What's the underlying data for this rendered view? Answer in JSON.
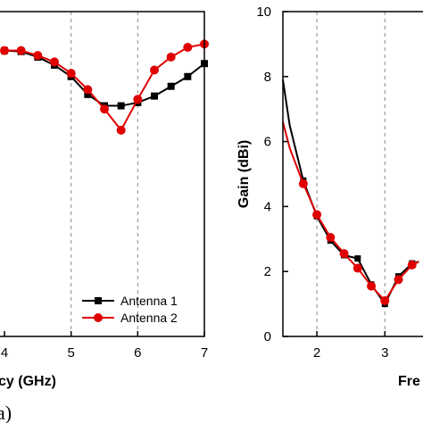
{
  "chart_data": [
    {
      "type": "line",
      "xlabel": "cy (GHz)",
      "ylabel": "",
      "xlim": [
        4,
        7
      ],
      "x_ticks": [
        "4",
        "5",
        "6",
        "7"
      ],
      "y_ticks": [],
      "grid": true,
      "legend": "bottom-right",
      "series": [
        {
          "name": "Antenna 1",
          "color": "#000000",
          "marker": "square",
          "x": [
            4.0,
            4.25,
            4.5,
            4.75,
            5.0,
            5.25,
            5.5,
            5.75,
            6.0,
            6.25,
            6.5,
            6.75,
            7.0
          ],
          "y": [
            0.88,
            0.877,
            0.86,
            0.835,
            0.8,
            0.745,
            0.71,
            0.71,
            0.72,
            0.74,
            0.77,
            0.8,
            0.84
          ]
        },
        {
          "name": "Antenna 2",
          "color": "#e00000",
          "marker": "circle",
          "x": [
            4.0,
            4.25,
            4.5,
            4.75,
            5.0,
            5.25,
            5.5,
            5.75,
            6.0,
            6.25,
            6.5,
            6.75,
            7.0
          ],
          "y": [
            0.88,
            0.88,
            0.865,
            0.845,
            0.81,
            0.76,
            0.7,
            0.635,
            0.73,
            0.82,
            0.86,
            0.89,
            0.9
          ]
        }
      ]
    },
    {
      "type": "line",
      "xlabel": "Fre",
      "ylabel": "Gain (dBi)",
      "xlim": [
        1.5,
        3.6
      ],
      "ylim": [
        0,
        10
      ],
      "x_ticks": [
        "2",
        "3"
      ],
      "y_ticks": [
        "0",
        "2",
        "4",
        "6",
        "8",
        "10"
      ],
      "grid": true,
      "series": [
        {
          "name": "",
          "color": "#000000",
          "marker": "square",
          "x": [
            1.5,
            1.6,
            1.8,
            2.0,
            2.2,
            2.4,
            2.6,
            2.8,
            3.0,
            3.2,
            3.4,
            3.5
          ],
          "y": [
            7.9,
            6.5,
            4.8,
            3.7,
            2.95,
            2.5,
            2.4,
            1.6,
            1.0,
            1.85,
            2.25,
            2.3
          ]
        },
        {
          "name": "",
          "color": "#e00000",
          "marker": "circle",
          "x": [
            1.5,
            1.6,
            1.8,
            2.0,
            2.2,
            2.4,
            2.6,
            2.8,
            3.0,
            3.2,
            3.4,
            3.5
          ],
          "y": [
            6.6,
            5.8,
            4.7,
            3.75,
            3.05,
            2.55,
            2.1,
            1.55,
            1.1,
            1.75,
            2.2,
            2.3
          ]
        }
      ]
    }
  ],
  "labels": {
    "legend_1": "Antenna 1",
    "legend_2": "Antenna 2",
    "left_xlabel": "cy (GHz)",
    "right_xlabel": "Fre",
    "right_ylabel": "Gain (dBi)",
    "panel_label": "a)"
  }
}
